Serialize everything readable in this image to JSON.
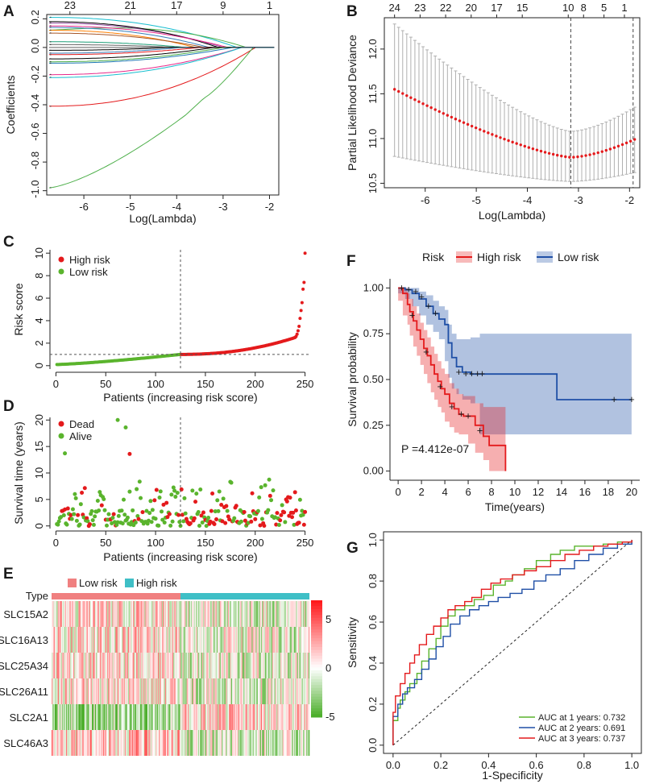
{
  "figure": {
    "panel_labels": [
      "A",
      "B",
      "C",
      "D",
      "E",
      "F",
      "G"
    ]
  },
  "chart_data": [
    {
      "panel": "A",
      "type": "line",
      "xlabel": "Log(Lambda)",
      "ylabel": "Coefficients",
      "x_ticks": [
        -6,
        -5,
        -4,
        -3,
        -2
      ],
      "y_ticks": [
        -1.0,
        -0.8,
        -0.6,
        -0.4,
        -0.2,
        0.0,
        0.2
      ],
      "top_ticks": [
        23,
        21,
        17,
        9,
        1
      ],
      "top_tick_x": [
        -6.3,
        -5,
        -4,
        -3,
        -2
      ],
      "xlim": [
        -6.8,
        -1.8
      ],
      "ylim": [
        -1.03,
        0.23
      ],
      "series": [
        {
          "name": "g1",
          "color": "#e41a1c",
          "start": -0.41,
          "end_lambda": -2.3,
          "shape": "smooth"
        },
        {
          "name": "g2",
          "color": "#4daf4a",
          "start": -0.98,
          "end_lambda": -2.35,
          "shape": "kink"
        },
        {
          "name": "g3",
          "color": "#17becf",
          "start": 0.21,
          "end_lambda": -2.7,
          "shape": "smooth"
        },
        {
          "name": "g4",
          "color": "#4daf4a",
          "start": 0.12,
          "end_lambda": -2.5,
          "shape": "hump"
        },
        {
          "name": "g5",
          "color": "#984ea3",
          "start": 0.17,
          "end_lambda": -3.0,
          "shape": "smooth"
        },
        {
          "name": "g6",
          "color": "#000000",
          "start": 0.18,
          "end_lambda": -3.1,
          "shape": "smooth"
        },
        {
          "name": "g7",
          "color": "#e7298a",
          "start": 0.15,
          "end_lambda": -2.9,
          "shape": "smooth"
        },
        {
          "name": "g8",
          "color": "#377eb8",
          "start": 0.14,
          "end_lambda": -3.3,
          "shape": "smooth"
        },
        {
          "name": "g9",
          "color": "#ff7f00",
          "start": 0.12,
          "end_lambda": -3.6,
          "shape": "smooth"
        },
        {
          "name": "g10",
          "color": "#a65628",
          "start": 0.1,
          "end_lambda": -3.4,
          "shape": "smooth"
        },
        {
          "name": "g11",
          "color": "#1b9e77",
          "start": 0.04,
          "end_lambda": -3.8,
          "shape": "smooth"
        },
        {
          "name": "g12",
          "color": "#666666",
          "start": 0.02,
          "end_lambda": -4.0,
          "shape": "smooth"
        },
        {
          "name": "g13",
          "color": "#000000",
          "start": -0.02,
          "end_lambda": -4.2,
          "shape": "smooth"
        },
        {
          "name": "g14",
          "color": "#377eb8",
          "start": -0.04,
          "end_lambda": -3.9,
          "shape": "smooth"
        },
        {
          "name": "g15",
          "color": "#e41a1c",
          "start": -0.05,
          "end_lambda": -3.5,
          "shape": "smooth"
        },
        {
          "name": "g16",
          "color": "#000000",
          "start": -0.08,
          "end_lambda": -3.2,
          "shape": "smooth"
        },
        {
          "name": "g17",
          "color": "#4daf4a",
          "start": -0.1,
          "end_lambda": -3.0,
          "shape": "smooth"
        },
        {
          "name": "g18",
          "color": "#1f78b4",
          "start": -0.11,
          "end_lambda": -2.8,
          "shape": "smooth"
        },
        {
          "name": "g19",
          "color": "#e7298a",
          "start": -0.19,
          "end_lambda": -2.6,
          "shape": "smooth"
        },
        {
          "name": "g20",
          "color": "#17becf",
          "start": -0.21,
          "end_lambda": -2.6,
          "shape": "smooth"
        }
      ]
    },
    {
      "panel": "B",
      "type": "scatter",
      "xlabel": "Log(Lambda)",
      "ylabel": "Partial Likelihood Deviance",
      "x_ticks": [
        -6,
        -5,
        -4,
        -3,
        -2
      ],
      "y_ticks": [
        10.5,
        11.0,
        11.5,
        12.0
      ],
      "top_ticks": [
        24,
        23,
        22,
        20,
        17,
        15,
        10,
        8,
        5,
        1
      ],
      "top_tick_x": [
        -6.6,
        -6.1,
        -5.6,
        -5.1,
        -4.6,
        -4.1,
        -3.2,
        -2.9,
        -2.5,
        -2.1
      ],
      "xlim": [
        -6.8,
        -1.8
      ],
      "ylim": [
        10.45,
        12.35
      ],
      "x_start": -6.6,
      "x_end": -1.9,
      "n_points": 60,
      "min_lambda": -3.15,
      "vlines": [
        -3.15,
        -1.93
      ],
      "mean_start": 11.55,
      "mean_min": 10.79,
      "mean_end": 10.99,
      "upper_start": 12.28,
      "upper_min": 11.08,
      "upper_end": 11.35,
      "lower_start": 10.8,
      "lower_min": 10.52,
      "lower_end": 10.62
    },
    {
      "panel": "C",
      "type": "scatter",
      "xlabel": "Patients (increasing risk score)",
      "ylabel": "Risk score",
      "x_ticks": [
        0,
        50,
        100,
        150,
        200,
        250
      ],
      "y_ticks": [
        0,
        2,
        4,
        6,
        8,
        10
      ],
      "xlim": [
        -6,
        256
      ],
      "ylim": [
        -0.3,
        10.3
      ],
      "n": 250,
      "cutoff_index": 125,
      "cutoff_value": 1.0,
      "legend": [
        "High risk",
        "Low risk"
      ],
      "colors": {
        "high": "#e41a1c",
        "low": "#5ab42d"
      },
      "tail_values": [
        2.6,
        2.8,
        3.1,
        3.5,
        4.2,
        4.9,
        5.6,
        6.8,
        7.4,
        10.0
      ]
    },
    {
      "panel": "D",
      "type": "scatter",
      "xlabel": "Patients (increasing risk score)",
      "ylabel": "Survival time (years)",
      "x_ticks": [
        0,
        50,
        100,
        150,
        200,
        250
      ],
      "y_ticks": [
        0,
        5,
        10,
        15,
        20
      ],
      "xlim": [
        -6,
        256
      ],
      "ylim": [
        -0.5,
        20.5
      ],
      "cutoff_index": 125,
      "legend": [
        "Dead",
        "Alive"
      ],
      "colors": {
        "dead": "#e41a1c",
        "alive": "#5ab42d"
      },
      "notable_points": [
        {
          "x": 62,
          "y": 20.0,
          "status": "alive"
        },
        {
          "x": 70,
          "y": 18.6,
          "status": "alive"
        },
        {
          "x": 74,
          "y": 13.6,
          "status": "dead"
        },
        {
          "x": 9,
          "y": 13.7,
          "status": "alive"
        }
      ]
    },
    {
      "panel": "E",
      "type": "heatmap",
      "annotation_label": "Type",
      "legend": [
        "Low risk",
        "High risk"
      ],
      "annotation_colors": {
        "low": "#f08080",
        "high": "#3fbfc6"
      },
      "rows": [
        "SLC15A2",
        "SLC16A13",
        "SLC25A34",
        "SLC26A11",
        "SLC2A1",
        "SLC46A3"
      ],
      "n_columns": 250,
      "low_count": 125,
      "color_scale": {
        "min": -5,
        "max": 7,
        "low": "#4daf2c",
        "mid": "#ffffff",
        "high": "#e31a1c"
      },
      "scale_ticks": [
        -5,
        0,
        5
      ]
    },
    {
      "panel": "F",
      "type": "line",
      "title": "Risk",
      "legend": [
        "High risk",
        "Low risk"
      ],
      "colors": {
        "high": "#e41a1c",
        "low": "#1f4fa6"
      },
      "xlabel": "Time(years)",
      "ylabel": "Survival probability",
      "x_ticks": [
        0,
        2,
        4,
        6,
        8,
        10,
        12,
        14,
        16,
        18,
        20
      ],
      "y_ticks": [
        "0.00",
        "0.25",
        "0.50",
        "0.75",
        "1.00"
      ],
      "xlim": [
        -0.7,
        20.7
      ],
      "ylim": [
        -0.05,
        1.05
      ],
      "annotation": "P =4.412e-07",
      "high_risk": {
        "x": [
          0,
          0.4,
          0.8,
          1.0,
          1.3,
          1.6,
          1.9,
          2.2,
          2.5,
          2.8,
          3.1,
          3.4,
          3.7,
          4.0,
          4.4,
          4.8,
          5.2,
          5.6,
          6.0,
          6.6,
          7.3,
          7.8,
          9.2
        ],
        "y": [
          1.0,
          0.97,
          0.91,
          0.87,
          0.82,
          0.77,
          0.72,
          0.67,
          0.63,
          0.58,
          0.53,
          0.49,
          0.45,
          0.42,
          0.37,
          0.34,
          0.31,
          0.3,
          0.3,
          0.25,
          0.19,
          0.14,
          0.0
        ],
        "lower": [
          1.0,
          0.93,
          0.85,
          0.8,
          0.74,
          0.68,
          0.63,
          0.58,
          0.53,
          0.48,
          0.43,
          0.39,
          0.35,
          0.32,
          0.27,
          0.24,
          0.21,
          0.2,
          0.2,
          0.15,
          0.1,
          0.06,
          0.0
        ],
        "upper": [
          1.0,
          1.0,
          0.97,
          0.94,
          0.9,
          0.86,
          0.81,
          0.77,
          0.73,
          0.68,
          0.64,
          0.6,
          0.56,
          0.53,
          0.48,
          0.45,
          0.42,
          0.41,
          0.41,
          0.37,
          0.35,
          0.35,
          0.35
        ]
      },
      "low_risk": {
        "x": [
          0,
          0.6,
          1.2,
          1.8,
          2.4,
          3.0,
          3.5,
          4.0,
          4.3,
          4.6,
          5.0,
          5.5,
          6.2,
          7.0,
          13.6,
          20
        ],
        "y": [
          1.0,
          0.99,
          0.97,
          0.94,
          0.9,
          0.86,
          0.83,
          0.8,
          0.7,
          0.62,
          0.57,
          0.54,
          0.53,
          0.53,
          0.39,
          0.39
        ],
        "lower": [
          1.0,
          0.97,
          0.94,
          0.9,
          0.85,
          0.8,
          0.76,
          0.72,
          0.6,
          0.51,
          0.45,
          0.42,
          0.39,
          0.37,
          0.2,
          0.2
        ],
        "upper": [
          1.0,
          1.0,
          1.0,
          0.98,
          0.96,
          0.93,
          0.9,
          0.88,
          0.8,
          0.75,
          0.72,
          0.72,
          0.73,
          0.75,
          0.75,
          0.75
        ]
      }
    },
    {
      "panel": "G",
      "type": "line",
      "xlabel": "1-Specificity",
      "ylabel": "Sensitivity",
      "x_ticks": [
        "0.0",
        "0.2",
        "0.4",
        "0.6",
        "0.8",
        "1.0"
      ],
      "y_ticks": [
        "0.0",
        "0.2",
        "0.4",
        "0.6",
        "0.8",
        "1.0"
      ],
      "xlim": [
        -0.04,
        1.04
      ],
      "ylim": [
        -0.04,
        1.04
      ],
      "series": [
        {
          "name": "AUC at 1 years: 0.732",
          "color": "#5ab42d",
          "x": [
            0,
            0.0,
            0.02,
            0.03,
            0.05,
            0.07,
            0.1,
            0.12,
            0.15,
            0.18,
            0.2,
            0.23,
            0.26,
            0.3,
            0.34,
            0.38,
            0.42,
            0.47,
            0.5,
            0.55,
            0.6,
            0.66,
            0.7,
            0.76,
            0.82,
            0.88,
            0.94,
            1.0
          ],
          "y": [
            0,
            0.12,
            0.18,
            0.22,
            0.26,
            0.3,
            0.35,
            0.41,
            0.47,
            0.52,
            0.58,
            0.63,
            0.66,
            0.68,
            0.71,
            0.73,
            0.78,
            0.8,
            0.83,
            0.86,
            0.9,
            0.93,
            0.95,
            0.97,
            0.97,
            0.98,
            0.99,
            1.0
          ]
        },
        {
          "name": "AUC at 2 years: 0.691",
          "color": "#1f4fa6",
          "x": [
            0,
            0.0,
            0.02,
            0.04,
            0.06,
            0.09,
            0.12,
            0.15,
            0.18,
            0.21,
            0.24,
            0.28,
            0.32,
            0.36,
            0.4,
            0.44,
            0.49,
            0.54,
            0.59,
            0.64,
            0.7,
            0.76,
            0.82,
            0.88,
            0.94,
            1.0
          ],
          "y": [
            0,
            0.14,
            0.2,
            0.25,
            0.28,
            0.32,
            0.37,
            0.42,
            0.48,
            0.53,
            0.59,
            0.63,
            0.66,
            0.68,
            0.7,
            0.72,
            0.74,
            0.76,
            0.8,
            0.83,
            0.86,
            0.9,
            0.93,
            0.96,
            0.98,
            1.0
          ]
        },
        {
          "name": "AUC at 3 years: 0.737",
          "color": "#e41a1c",
          "x": [
            0,
            0.0,
            0.01,
            0.03,
            0.05,
            0.07,
            0.09,
            0.11,
            0.14,
            0.17,
            0.2,
            0.23,
            0.26,
            0.3,
            0.33,
            0.37,
            0.41,
            0.45,
            0.5,
            0.55,
            0.6,
            0.66,
            0.72,
            0.78,
            0.84,
            0.9,
            0.96,
            1.0
          ],
          "y": [
            0,
            0.16,
            0.24,
            0.3,
            0.35,
            0.4,
            0.44,
            0.49,
            0.54,
            0.58,
            0.62,
            0.66,
            0.68,
            0.7,
            0.72,
            0.76,
            0.79,
            0.81,
            0.83,
            0.85,
            0.87,
            0.9,
            0.93,
            0.95,
            0.97,
            0.98,
            0.99,
            1.0
          ]
        }
      ]
    }
  ]
}
